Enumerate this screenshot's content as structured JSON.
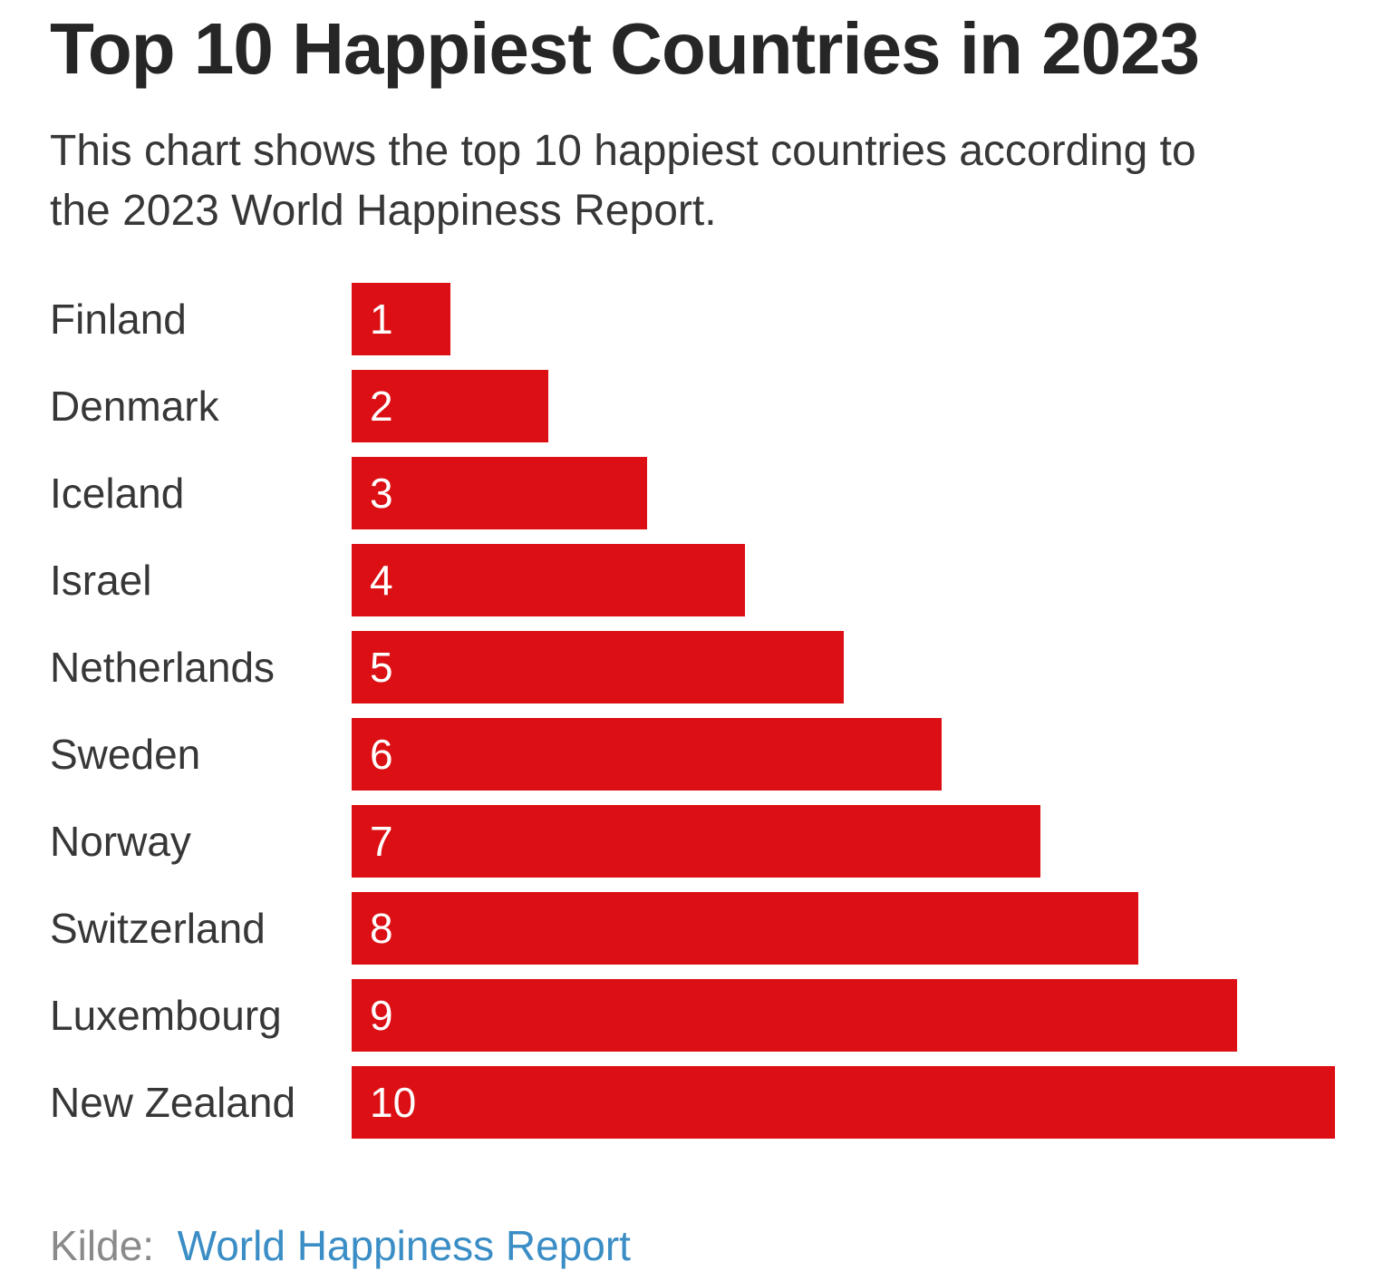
{
  "title": "Top 10 Happiest Countries in 2023",
  "subtitle_line1": "This chart shows the top 10 happiest countries according to",
  "subtitle_line2": "the 2023 World Happiness Report.",
  "chart_data": {
    "type": "bar",
    "orientation": "horizontal",
    "title": "Top 10 Happiest Countries in 2023",
    "categories": [
      "Finland",
      "Denmark",
      "Iceland",
      "Israel",
      "Netherlands",
      "Sweden",
      "Norway",
      "Switzerland",
      "Luxembourg",
      "New Zealand"
    ],
    "values": [
      1,
      2,
      3,
      4,
      5,
      6,
      7,
      8,
      9,
      10
    ],
    "value_labels": [
      "1",
      "2",
      "3",
      "4",
      "5",
      "6",
      "7",
      "8",
      "9",
      "10"
    ],
    "xlabel": "",
    "ylabel": "",
    "xlim": [
      0,
      10
    ],
    "grid": false,
    "legend": false,
    "bar_color": "#DC1014",
    "value_label_color": "#FFFFFF"
  },
  "footer": {
    "source_label": "Kilde:",
    "source_link_text": "World Happiness Report",
    "source_label_color": "#8A8A8A",
    "source_link_color": "#3A8DC5"
  }
}
